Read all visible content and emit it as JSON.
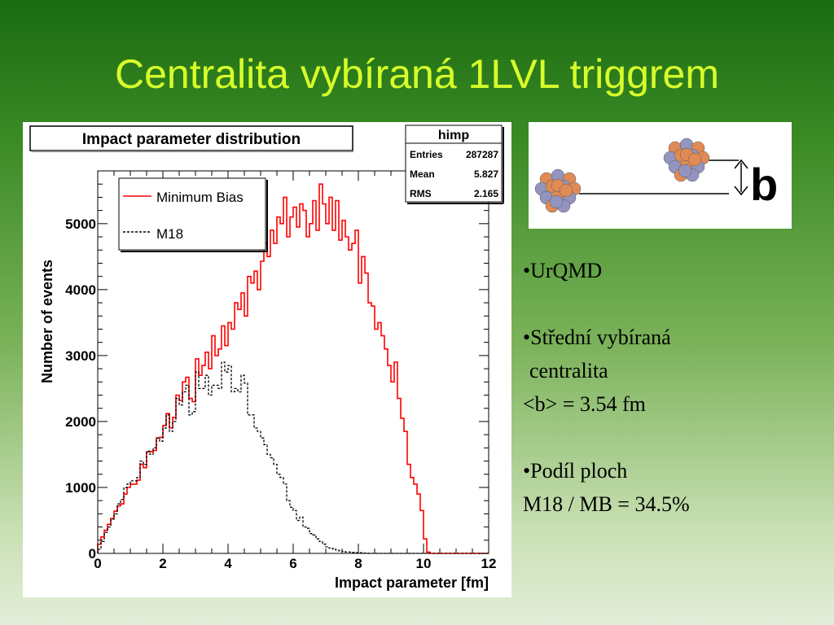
{
  "slide": {
    "title": "Centralita vybíraná 1LVL triggrem"
  },
  "chart_data": {
    "type": "line",
    "title": "Impact parameter distribution",
    "xlabel": "Impact parameter [fm]",
    "ylabel": "Number of events",
    "xlim": [
      0,
      12
    ],
    "ylim": [
      0,
      5800
    ],
    "xticks": [
      "0",
      "2",
      "4",
      "6",
      "8",
      "10",
      "12"
    ],
    "yticks": [
      "0",
      "1000",
      "2000",
      "3000",
      "4000",
      "5000"
    ],
    "ytick_values": [
      0,
      1000,
      2000,
      3000,
      4000,
      5000
    ],
    "legend_position": "top-left",
    "bin_width": 0.1,
    "series": [
      {
        "name": "Minimum Bias",
        "color": "#ff0000",
        "dash": "solid",
        "values": [
          140,
          250,
          350,
          440,
          530,
          640,
          720,
          750,
          900,
          1000,
          1050,
          1050,
          1110,
          1350,
          1300,
          1540,
          1540,
          1560,
          1750,
          1760,
          1940,
          2120,
          1900,
          2060,
          2400,
          2320,
          2600,
          2670,
          2350,
          2300,
          2950,
          2700,
          2850,
          3050,
          2800,
          3300,
          3000,
          3100,
          3450,
          3150,
          3500,
          3400,
          3800,
          3700,
          3950,
          3600,
          4200,
          4100,
          4280,
          4000,
          4430,
          4700,
          4500,
          4900,
          4700,
          5100,
          5000,
          5400,
          4800,
          5100,
          5250,
          4950,
          5300,
          5200,
          4800,
          5000,
          5350,
          4900,
          5600,
          5300,
          5000,
          5400,
          4900,
          5350,
          4750,
          5050,
          4800,
          4600,
          4700,
          4900,
          4100,
          4500,
          4250,
          3800,
          3750,
          3400,
          3500,
          3300,
          3100,
          2850,
          2600,
          2900,
          2350,
          2050,
          1850,
          1350,
          1150,
          1050,
          900,
          650,
          220,
          20,
          0,
          0,
          0,
          0,
          0,
          0,
          0,
          0,
          0,
          0,
          0,
          0,
          0,
          0,
          0,
          0,
          0,
          0
        ]
      },
      {
        "name": "M18",
        "color": "#000000",
        "dash": "dashed",
        "values": [
          60,
          180,
          320,
          400,
          520,
          600,
          750,
          820,
          1000,
          1050,
          1100,
          1100,
          1150,
          1400,
          1350,
          1550,
          1500,
          1600,
          1750,
          1700,
          1900,
          2100,
          1850,
          2000,
          2350,
          2250,
          2450,
          2550,
          2100,
          2150,
          2750,
          2500,
          2500,
          2700,
          2400,
          2550,
          2550,
          2500,
          2900,
          2750,
          2850,
          2450,
          2500,
          2450,
          2700,
          2580,
          2100,
          2100,
          1900,
          1850,
          1750,
          1650,
          1500,
          1450,
          1350,
          1200,
          1150,
          1050,
          800,
          700,
          650,
          500,
          550,
          400,
          380,
          300,
          280,
          220,
          180,
          140,
          100,
          80,
          70,
          50,
          40,
          30,
          20,
          20,
          15,
          10,
          10,
          5,
          5,
          0,
          0,
          0,
          0,
          0,
          0,
          0,
          0,
          0,
          0,
          0,
          0,
          0,
          0,
          0,
          0,
          0,
          0,
          0,
          0,
          0,
          0,
          0,
          0,
          0,
          0,
          0,
          0,
          0,
          0,
          0,
          0,
          0,
          0,
          0,
          0,
          0
        ]
      }
    ],
    "stats_box": {
      "title": "himp",
      "rows": [
        {
          "label": "Entries",
          "value": "287287"
        },
        {
          "label": "Mean",
          "value": "5.827"
        },
        {
          "label": "RMS",
          "value": "2.165"
        }
      ]
    }
  },
  "schematic": {
    "label": "b",
    "nucleon_colors": [
      "#e08a55",
      "#9494c0"
    ]
  },
  "bullets": {
    "item1": "•UrQMD",
    "item2_line1": "•Střední vybíraná",
    "item2_line2": "centralita",
    "item2_line3": "<b> = 3.54 fm",
    "item3_line1": "•Podíl ploch",
    "item3_line2": "M18 / MB = 34.5%"
  }
}
